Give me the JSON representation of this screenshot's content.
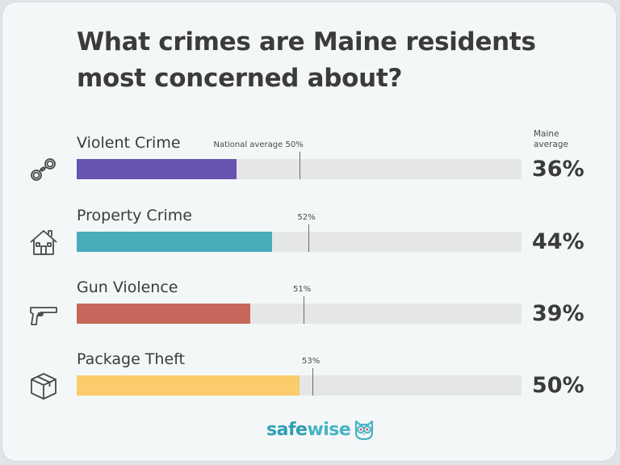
{
  "title": "What crimes are Maine residents most concerned about?",
  "legend": {
    "maine_average": "Maine average",
    "national_average_prefix": "National average"
  },
  "brand": {
    "part1": "safe",
    "part2": "wise"
  },
  "chart_data": {
    "type": "bar",
    "orientation": "horizontal",
    "title": "What crimes are Maine residents most concerned about?",
    "xlim": [
      0,
      100
    ],
    "unit": "%",
    "categories": [
      "Violent Crime",
      "Property Crime",
      "Gun Violence",
      "Package Theft"
    ],
    "series": [
      {
        "name": "Maine average",
        "values": [
          36,
          44,
          39,
          50
        ]
      },
      {
        "name": "National average",
        "values": [
          50,
          52,
          51,
          53
        ]
      }
    ],
    "value_labels": [
      "36%",
      "44%",
      "39%",
      "50%"
    ],
    "national_labels": [
      "50%",
      "52%",
      "51%",
      "53%"
    ],
    "colors": [
      "#6654b0",
      "#4aabbb",
      "#c7675b",
      "#fbcc6b"
    ],
    "icons": [
      "handcuffs-icon",
      "house-icon",
      "gun-icon",
      "package-icon"
    ]
  }
}
